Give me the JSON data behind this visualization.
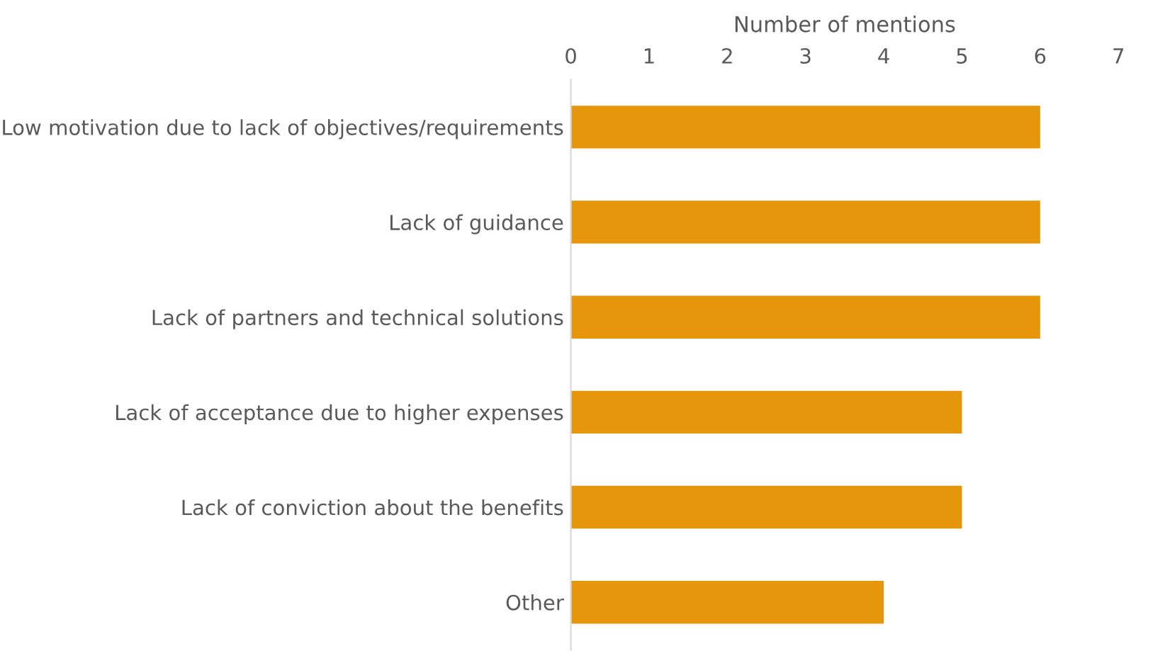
{
  "chart_data": {
    "type": "bar",
    "orientation": "horizontal",
    "xlabel": "Number of mentions",
    "categories": [
      "Low motivation due to lack of objectives/requirements",
      "Lack of guidance",
      "Lack of partners and technical solutions",
      "Lack of acceptance due to higher expenses",
      "Lack of conviction about the benefits",
      "Other"
    ],
    "values": [
      6,
      6,
      6,
      5,
      5,
      4
    ],
    "color": "#e6960a",
    "xlim": [
      0,
      7
    ],
    "xticks": [
      0,
      1,
      2,
      3,
      4,
      5,
      6,
      7
    ],
    "grid": false,
    "legend": false
  }
}
